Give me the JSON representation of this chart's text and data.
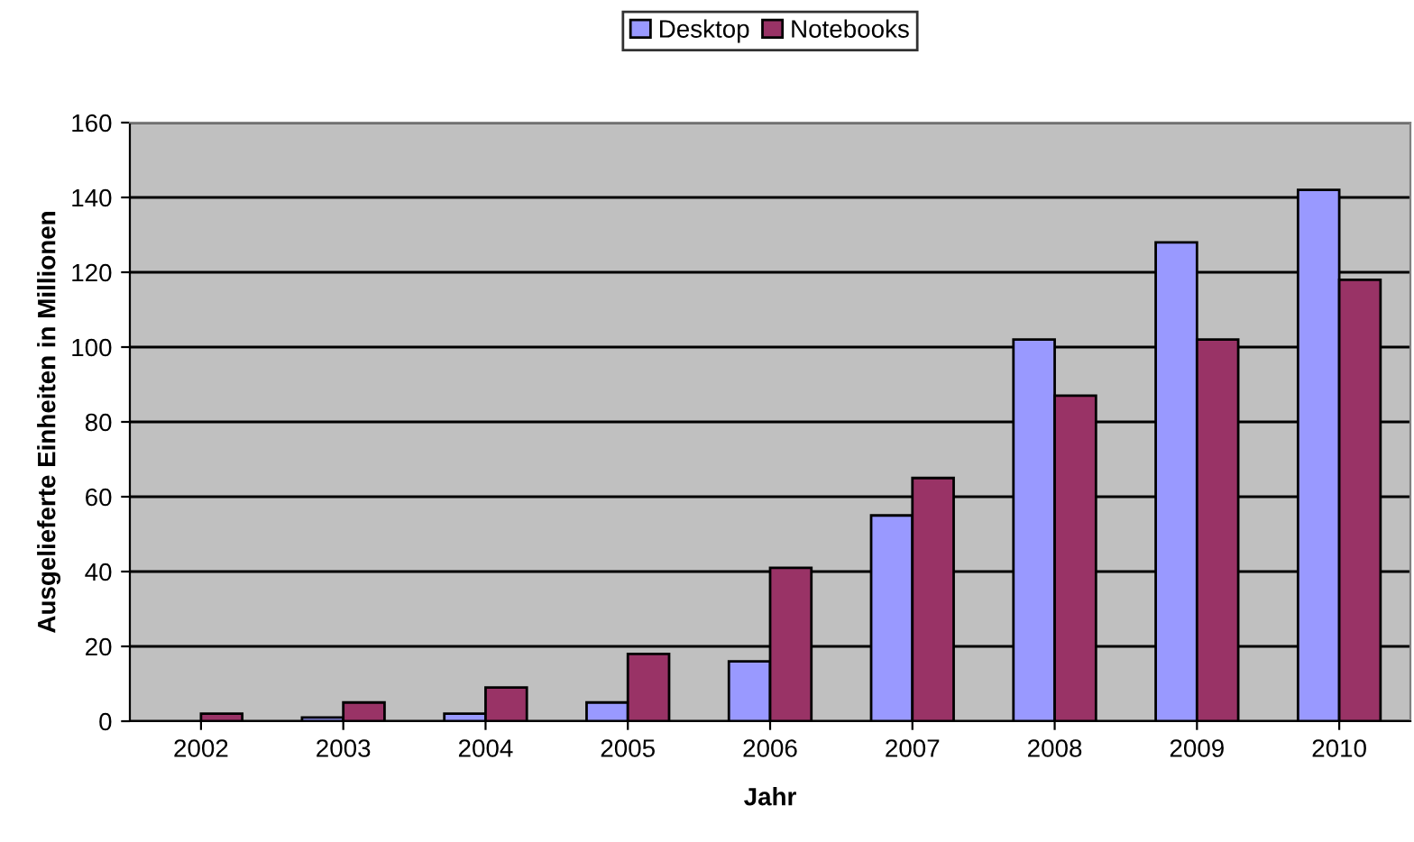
{
  "chart_data": {
    "type": "bar",
    "xlabel": "Jahr",
    "ylabel": "Ausgelieferte Einheiten in Millionen",
    "categories": [
      "2002",
      "2003",
      "2004",
      "2005",
      "2006",
      "2007",
      "2008",
      "2009",
      "2010"
    ],
    "series": [
      {
        "name": "Desktop",
        "color": "#9999ff",
        "values": [
          null,
          1,
          2,
          5,
          16,
          55,
          102,
          128,
          142
        ]
      },
      {
        "name": "Notebooks",
        "color": "#993366",
        "values": [
          2,
          5,
          9,
          18,
          41,
          65,
          87,
          102,
          118
        ]
      }
    ],
    "ylim": [
      0,
      160
    ],
    "yticks": [
      0,
      20,
      40,
      60,
      80,
      100,
      120,
      140,
      160
    ],
    "grid": "y",
    "legend": "top"
  }
}
